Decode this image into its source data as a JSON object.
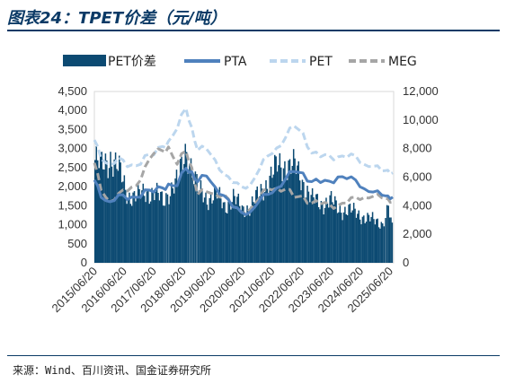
{
  "header": {
    "title": "图表24：TPET价差（元/吨）"
  },
  "footer": {
    "source": "来源：Wind、百川资讯、国金证券研究所"
  },
  "colors": {
    "pet_spread": "#0c4a72",
    "pta": "#4f81bd",
    "pet": "#bcd6ee",
    "meg": "#a6a6a6"
  },
  "chart_data": {
    "type": "bar+line",
    "title": "TPET价差（元/吨）",
    "legend_position": "top",
    "x_tick_labels": [
      "2015/06/20",
      "2016/06/20",
      "2017/06/20",
      "2018/06/20",
      "2019/06/20",
      "2020/06/20",
      "2021/06/20",
      "2022/06/20",
      "2023/06/20",
      "2024/06/20",
      "2025/06/20"
    ],
    "left_axis": {
      "ylim": [
        0,
        4500
      ],
      "ticks": [
        "0",
        "500",
        "1,000",
        "1,500",
        "2,000",
        "2,500",
        "3,000",
        "3,500",
        "4,000",
        "4,500"
      ]
    },
    "right_axis": {
      "ylim": [
        0,
        12000
      ],
      "ticks": [
        "0",
        "2,000",
        "4,000",
        "6,000",
        "8,000",
        "10,000",
        "12,000"
      ]
    },
    "series": [
      {
        "name": "PET价差",
        "kind": "bar",
        "axis": "left",
        "style": "solid",
        "x": [
          2015.47,
          2015.7,
          2016.0,
          2016.3,
          2016.6,
          2016.9,
          2017.2,
          2017.5,
          2017.8,
          2018.0,
          2018.3,
          2018.6,
          2018.8,
          2019.0,
          2019.3,
          2019.6,
          2019.9,
          2020.2,
          2020.5,
          2020.8,
          2021.1,
          2021.4,
          2021.7,
          2022.0,
          2022.3,
          2022.6,
          2022.9,
          2023.2,
          2023.5,
          2023.8,
          2024.1,
          2024.4,
          2024.7,
          2025.0,
          2025.3,
          2025.5,
          2025.67
        ],
        "values": [
          2700,
          2500,
          2800,
          2400,
          1800,
          1700,
          1900,
          1800,
          1650,
          1900,
          2100,
          3100,
          2400,
          1900,
          1700,
          1800,
          1500,
          1700,
          1400,
          1500,
          1800,
          2200,
          2500,
          2600,
          2500,
          2100,
          1650,
          1550,
          1650,
          1400,
          1400,
          1300,
          1200,
          1100,
          1050,
          1450,
          700
        ]
      },
      {
        "name": "PTA",
        "kind": "line",
        "axis": "right",
        "style": "solid",
        "x": [
          2015.47,
          2015.7,
          2016.0,
          2016.3,
          2016.6,
          2016.9,
          2017.2,
          2017.5,
          2017.8,
          2018.0,
          2018.3,
          2018.6,
          2018.8,
          2019.0,
          2019.3,
          2019.6,
          2019.9,
          2020.2,
          2020.5,
          2020.8,
          2021.1,
          2021.4,
          2021.7,
          2022.0,
          2022.3,
          2022.6,
          2022.9,
          2023.2,
          2023.5,
          2023.8,
          2024.1,
          2024.4,
          2024.7,
          2025.0,
          2025.3,
          2025.5,
          2025.67
        ],
        "values": [
          5800,
          4500,
          4400,
          4700,
          4400,
          4700,
          5000,
          5000,
          5300,
          5400,
          5500,
          6600,
          6300,
          5800,
          6000,
          5300,
          4800,
          3800,
          3600,
          3600,
          4200,
          4900,
          5200,
          5800,
          6500,
          6200,
          5700,
          5700,
          5600,
          6100,
          5900,
          5700,
          5300,
          4900,
          4700,
          4800,
          4600
        ]
      },
      {
        "name": "PET",
        "kind": "line",
        "axis": "right",
        "style": "dashed",
        "x": [
          2015.47,
          2015.7,
          2016.0,
          2016.3,
          2016.6,
          2016.9,
          2017.2,
          2017.5,
          2017.8,
          2018.0,
          2018.3,
          2018.6,
          2018.8,
          2019.0,
          2019.3,
          2019.6,
          2019.9,
          2020.2,
          2020.5,
          2020.8,
          2021.1,
          2021.4,
          2021.7,
          2022.0,
          2022.3,
          2022.6,
          2022.9,
          2023.2,
          2023.5,
          2023.8,
          2024.1,
          2024.4,
          2024.7,
          2025.0,
          2025.3,
          2025.5,
          2025.67
        ],
        "values": [
          8600,
          7200,
          7000,
          7300,
          6700,
          6900,
          7400,
          7600,
          8200,
          8400,
          9500,
          10800,
          9400,
          8000,
          7900,
          7200,
          6300,
          5500,
          5400,
          5500,
          6400,
          7600,
          8000,
          8700,
          9700,
          9000,
          7700,
          7500,
          7400,
          7500,
          7400,
          7400,
          7000,
          6700,
          6400,
          6600,
          6300
        ]
      },
      {
        "name": "MEG",
        "kind": "line",
        "axis": "right",
        "style": "dashed",
        "x": [
          2015.47,
          2015.7,
          2016.0,
          2016.3,
          2016.6,
          2016.9,
          2017.2,
          2017.5,
          2017.8,
          2018.0,
          2018.3,
          2018.6,
          2018.8,
          2019.0,
          2019.3,
          2019.6,
          2019.9,
          2020.2,
          2020.5,
          2020.8,
          2021.1,
          2021.4,
          2021.7,
          2022.0,
          2022.3,
          2022.6,
          2022.9,
          2023.2,
          2023.5,
          2023.8,
          2024.1,
          2024.4,
          2024.7,
          2025.0,
          2025.3,
          2025.5,
          2025.67
        ],
        "values": [
          7000,
          5000,
          4400,
          4800,
          5000,
          5500,
          6600,
          7700,
          7900,
          8000,
          7000,
          7800,
          6600,
          4900,
          4900,
          4800,
          4900,
          3800,
          3600,
          3800,
          4400,
          5300,
          5200,
          5100,
          4700,
          4600,
          4200,
          4200,
          4000,
          4100,
          4200,
          4500,
          4700,
          4600,
          4500,
          4600,
          4300
        ]
      }
    ]
  }
}
